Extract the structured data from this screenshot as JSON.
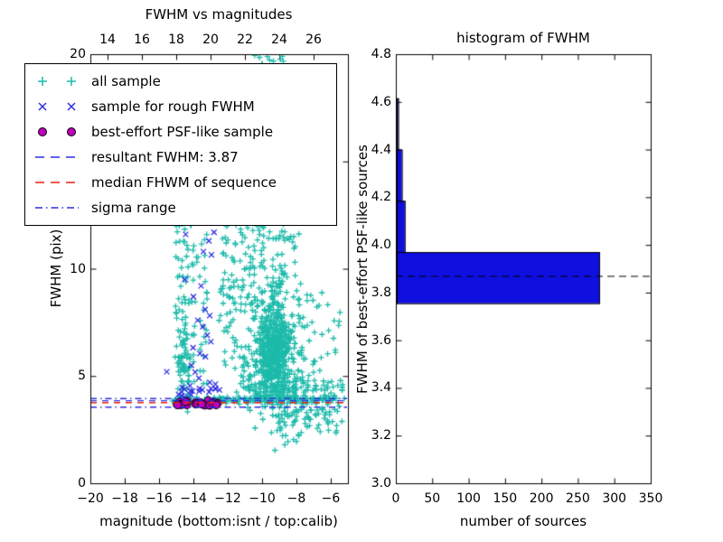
{
  "figure": {
    "background": "#ffffff"
  },
  "colors": {
    "cyan": "#1cbaaa",
    "blue": "#2d2de0",
    "magenta": "#be00be",
    "red": "#ee2211",
    "hist_bar": "#0f0fe0",
    "black": "#000000"
  },
  "left_plot": {
    "title": "FWHM vs magnitudes",
    "xlabel": "magnitude (bottom:isnt / top:calib)",
    "ylabel": "FWHM (pix)",
    "xlim_bottom": [
      -20,
      -5
    ],
    "ylim": [
      0,
      20
    ],
    "top_axis_offset": 33,
    "x_bottom_ticks": {
      "values": [
        -20,
        -18,
        -16,
        -14,
        -12,
        -10,
        -8,
        -6
      ],
      "labels": [
        "−20",
        "−18",
        "−16",
        "−14",
        "−12",
        "−10",
        "−8",
        "−6"
      ]
    },
    "x_top_ticks": {
      "values": [
        14,
        16,
        18,
        20,
        22,
        24,
        26
      ],
      "labels": [
        "14",
        "16",
        "18",
        "20",
        "22",
        "24",
        "26"
      ]
    },
    "y_ticks": {
      "values": [
        0,
        5,
        10,
        15,
        20
      ],
      "labels": [
        "0",
        "5",
        "10",
        "15",
        "20"
      ]
    },
    "legend": {
      "entries": [
        {
          "label": "all sample",
          "type": "plus2",
          "color": "#1cbaaa"
        },
        {
          "label": "sample for rough FWHM",
          "type": "x2",
          "color": "#2d2de0"
        },
        {
          "label": "best-effort PSF-like sample",
          "type": "circle2",
          "color": "#be00be"
        },
        {
          "label": "resultant FWHM: 3.87",
          "type": "dash",
          "color": "#2d2de0"
        },
        {
          "label": "median FHWM of sequence",
          "type": "dash",
          "color": "#ee2211"
        },
        {
          "label": "sigma range",
          "type": "dashdot",
          "color": "#2d2de0"
        }
      ]
    }
  },
  "right_plot": {
    "title": "histogram of FWHM",
    "xlabel": "number of sources",
    "ylabel": "FWHM of best-effort PSF-like sources",
    "xlim": [
      0,
      350
    ],
    "ylim": [
      3.0,
      4.8
    ],
    "x_ticks": {
      "values": [
        0,
        50,
        100,
        150,
        200,
        250,
        300,
        350
      ],
      "labels": [
        "0",
        "50",
        "100",
        "150",
        "200",
        "250",
        "300",
        "350"
      ]
    },
    "y_ticks": {
      "values": [
        3.0,
        3.2,
        3.4,
        3.6,
        3.8,
        4.0,
        4.2,
        4.4,
        4.6,
        4.8
      ],
      "labels": [
        "3.0",
        "3.2",
        "3.4",
        "3.6",
        "3.8",
        "4.0",
        "4.2",
        "4.4",
        "4.6",
        "4.8"
      ]
    }
  },
  "chart_data": [
    {
      "type": "scatter",
      "title": "FWHM vs magnitudes",
      "xlabel": "magnitude (bottom:isnt / top:calib)",
      "ylabel": "FWHM (pix)",
      "xlim": [
        -20,
        -5
      ],
      "ylim": [
        0,
        20
      ],
      "seed": 42,
      "series": [
        {
          "name": "all sample",
          "marker": "plus",
          "color": "#1cbaaa",
          "clusters": [
            {
              "n": 420,
              "x": [
                "gauss",
                -9.35,
                0.5
              ],
              "y": [
                "gauss",
                6.1,
                1.0
              ]
            },
            {
              "n": 260,
              "x": [
                "gauss",
                -9.2,
                0.85
              ],
              "y": [
                "gauss",
                6.8,
                1.9
              ]
            },
            {
              "n": 130,
              "x": [
                "gauss",
                -9.0,
                1.2
              ],
              "y": [
                "gauss",
                4.35,
                0.45
              ]
            },
            {
              "n": 140,
              "x": [
                "uniform",
                -15.25,
                -5.15
              ],
              "y": [
                "gauss",
                3.9,
                0.08
              ]
            },
            {
              "n": 55,
              "x": [
                "uniform",
                -7.6,
                -5.3
              ],
              "y": [
                "uniform",
                2.3,
                4.6
              ]
            },
            {
              "n": 45,
              "x": [
                "gauss",
                -8.2,
                0.7
              ],
              "y": [
                "gauss",
                3.0,
                0.55
              ]
            },
            {
              "n": 65,
              "x": [
                "uniform",
                -15.05,
                -14.25
              ],
              "y": [
                "uniform",
                4.3,
                12.5
              ]
            },
            {
              "n": 45,
              "x": [
                "uniform",
                -14.25,
                -13.2
              ],
              "y": [
                "uniform",
                4.5,
                12.2
              ]
            },
            {
              "n": 50,
              "x": [
                "uniform",
                -12.55,
                -11.5
              ],
              "y": [
                "uniform",
                6.5,
                12.3
              ]
            },
            {
              "n": 26,
              "x": [
                "gauss",
                -9.7,
                0.45
              ],
              "y": [
                "gauss",
                19.9,
                0.5
              ]
            },
            {
              "n": 55,
              "x": [
                "uniform",
                -11.5,
                -9.8
              ],
              "y": [
                "uniform",
                8.0,
                12.3
              ]
            },
            {
              "n": 30,
              "x": [
                "uniform",
                -10.0,
                -7.8
              ],
              "y": [
                "uniform",
                9.5,
                12.3
              ]
            },
            {
              "n": 45,
              "x": [
                "uniform",
                -7.9,
                -5.4
              ],
              "y": [
                "uniform",
                4.3,
                9.0
              ]
            },
            {
              "n": 40,
              "x": [
                "gauss",
                -14.62,
                0.22
              ],
              "y": [
                "gauss",
                5.8,
                0.8
              ]
            },
            {
              "n": 25,
              "x": [
                "uniform",
                -12.2,
                -10.6
              ],
              "y": [
                "uniform",
                4.4,
                6.4
              ]
            }
          ]
        },
        {
          "name": "sample for rough FWHM",
          "marker": "x",
          "color": "#2d2de0",
          "clusters": [
            {
              "n": 9,
              "x": [
                "uniform",
                -14.9,
                -12.6
              ],
              "y": [
                "gauss",
                4.38,
                0.18
              ]
            },
            {
              "n": 7,
              "x": [
                "gauss",
                -14.55,
                0.25
              ],
              "y": [
                "gauss",
                4.25,
                0.18
              ]
            }
          ],
          "points": [
            [
              -15.55,
              5.2
            ],
            [
              -14.45,
              11.6
            ],
            [
              -12.62,
              12.2
            ],
            [
              -13.1,
              11.3
            ],
            [
              -13.42,
              10.8
            ],
            [
              -12.95,
              10.65
            ],
            [
              -14.5,
              9.5
            ],
            [
              -14.0,
              8.7
            ],
            [
              -13.32,
              8.1
            ],
            [
              -13.05,
              7.82
            ],
            [
              -13.45,
              7.3
            ],
            [
              -13.2,
              6.9
            ],
            [
              -12.98,
              6.6
            ],
            [
              -14.02,
              6.32
            ],
            [
              -13.62,
              6.05
            ],
            [
              -13.3,
              5.9
            ],
            [
              -14.12,
              5.5
            ],
            [
              -13.9,
              5.18
            ],
            [
              -13.68,
              4.9
            ],
            [
              -12.72,
              4.62
            ],
            [
              -12.98,
              4.42
            ],
            [
              -12.48,
              4.35
            ],
            [
              -14.2,
              4.55
            ],
            [
              -12.8,
              11.7
            ],
            [
              -13.55,
              9.2
            ],
            [
              -13.75,
              7.6
            ]
          ]
        },
        {
          "name": "best-effort PSF-like sample",
          "marker": "circle",
          "color": "#be00be",
          "clusters": [
            {
              "n": 26,
              "x": [
                "uniform",
                -14.95,
                -12.55
              ],
              "y": [
                "uniform",
                3.62,
                3.86
              ]
            }
          ]
        }
      ],
      "lines": [
        {
          "name": "sigma range upper",
          "y": 3.97,
          "style": "dashdot",
          "color": "#2d2de0"
        },
        {
          "name": "resultant FWHM",
          "y": 3.87,
          "style": "dashed",
          "color": "#2d2de0"
        },
        {
          "name": "median FHWM of sequence",
          "y": 3.78,
          "style": "dashed",
          "color": "#ee2211"
        },
        {
          "name": "sigma range lower",
          "y": 3.57,
          "style": "dashdot",
          "color": "#2d2de0"
        }
      ]
    },
    {
      "type": "bar",
      "orientation": "horizontal",
      "title": "histogram of FWHM",
      "xlabel": "number of sources",
      "ylabel": "FWHM of best-effort PSF-like sources",
      "xlim": [
        0,
        350
      ],
      "ylim": [
        3.0,
        4.8
      ],
      "bin_edges": [
        3.755,
        3.97,
        4.185,
        4.4,
        4.615
      ],
      "counts": [
        278,
        11,
        7,
        2
      ],
      "bar_color": "#0f0fe0",
      "marker_line": {
        "name": "resultant FWHM",
        "y": 3.87,
        "style": "dashed",
        "color": "#000000"
      }
    }
  ]
}
